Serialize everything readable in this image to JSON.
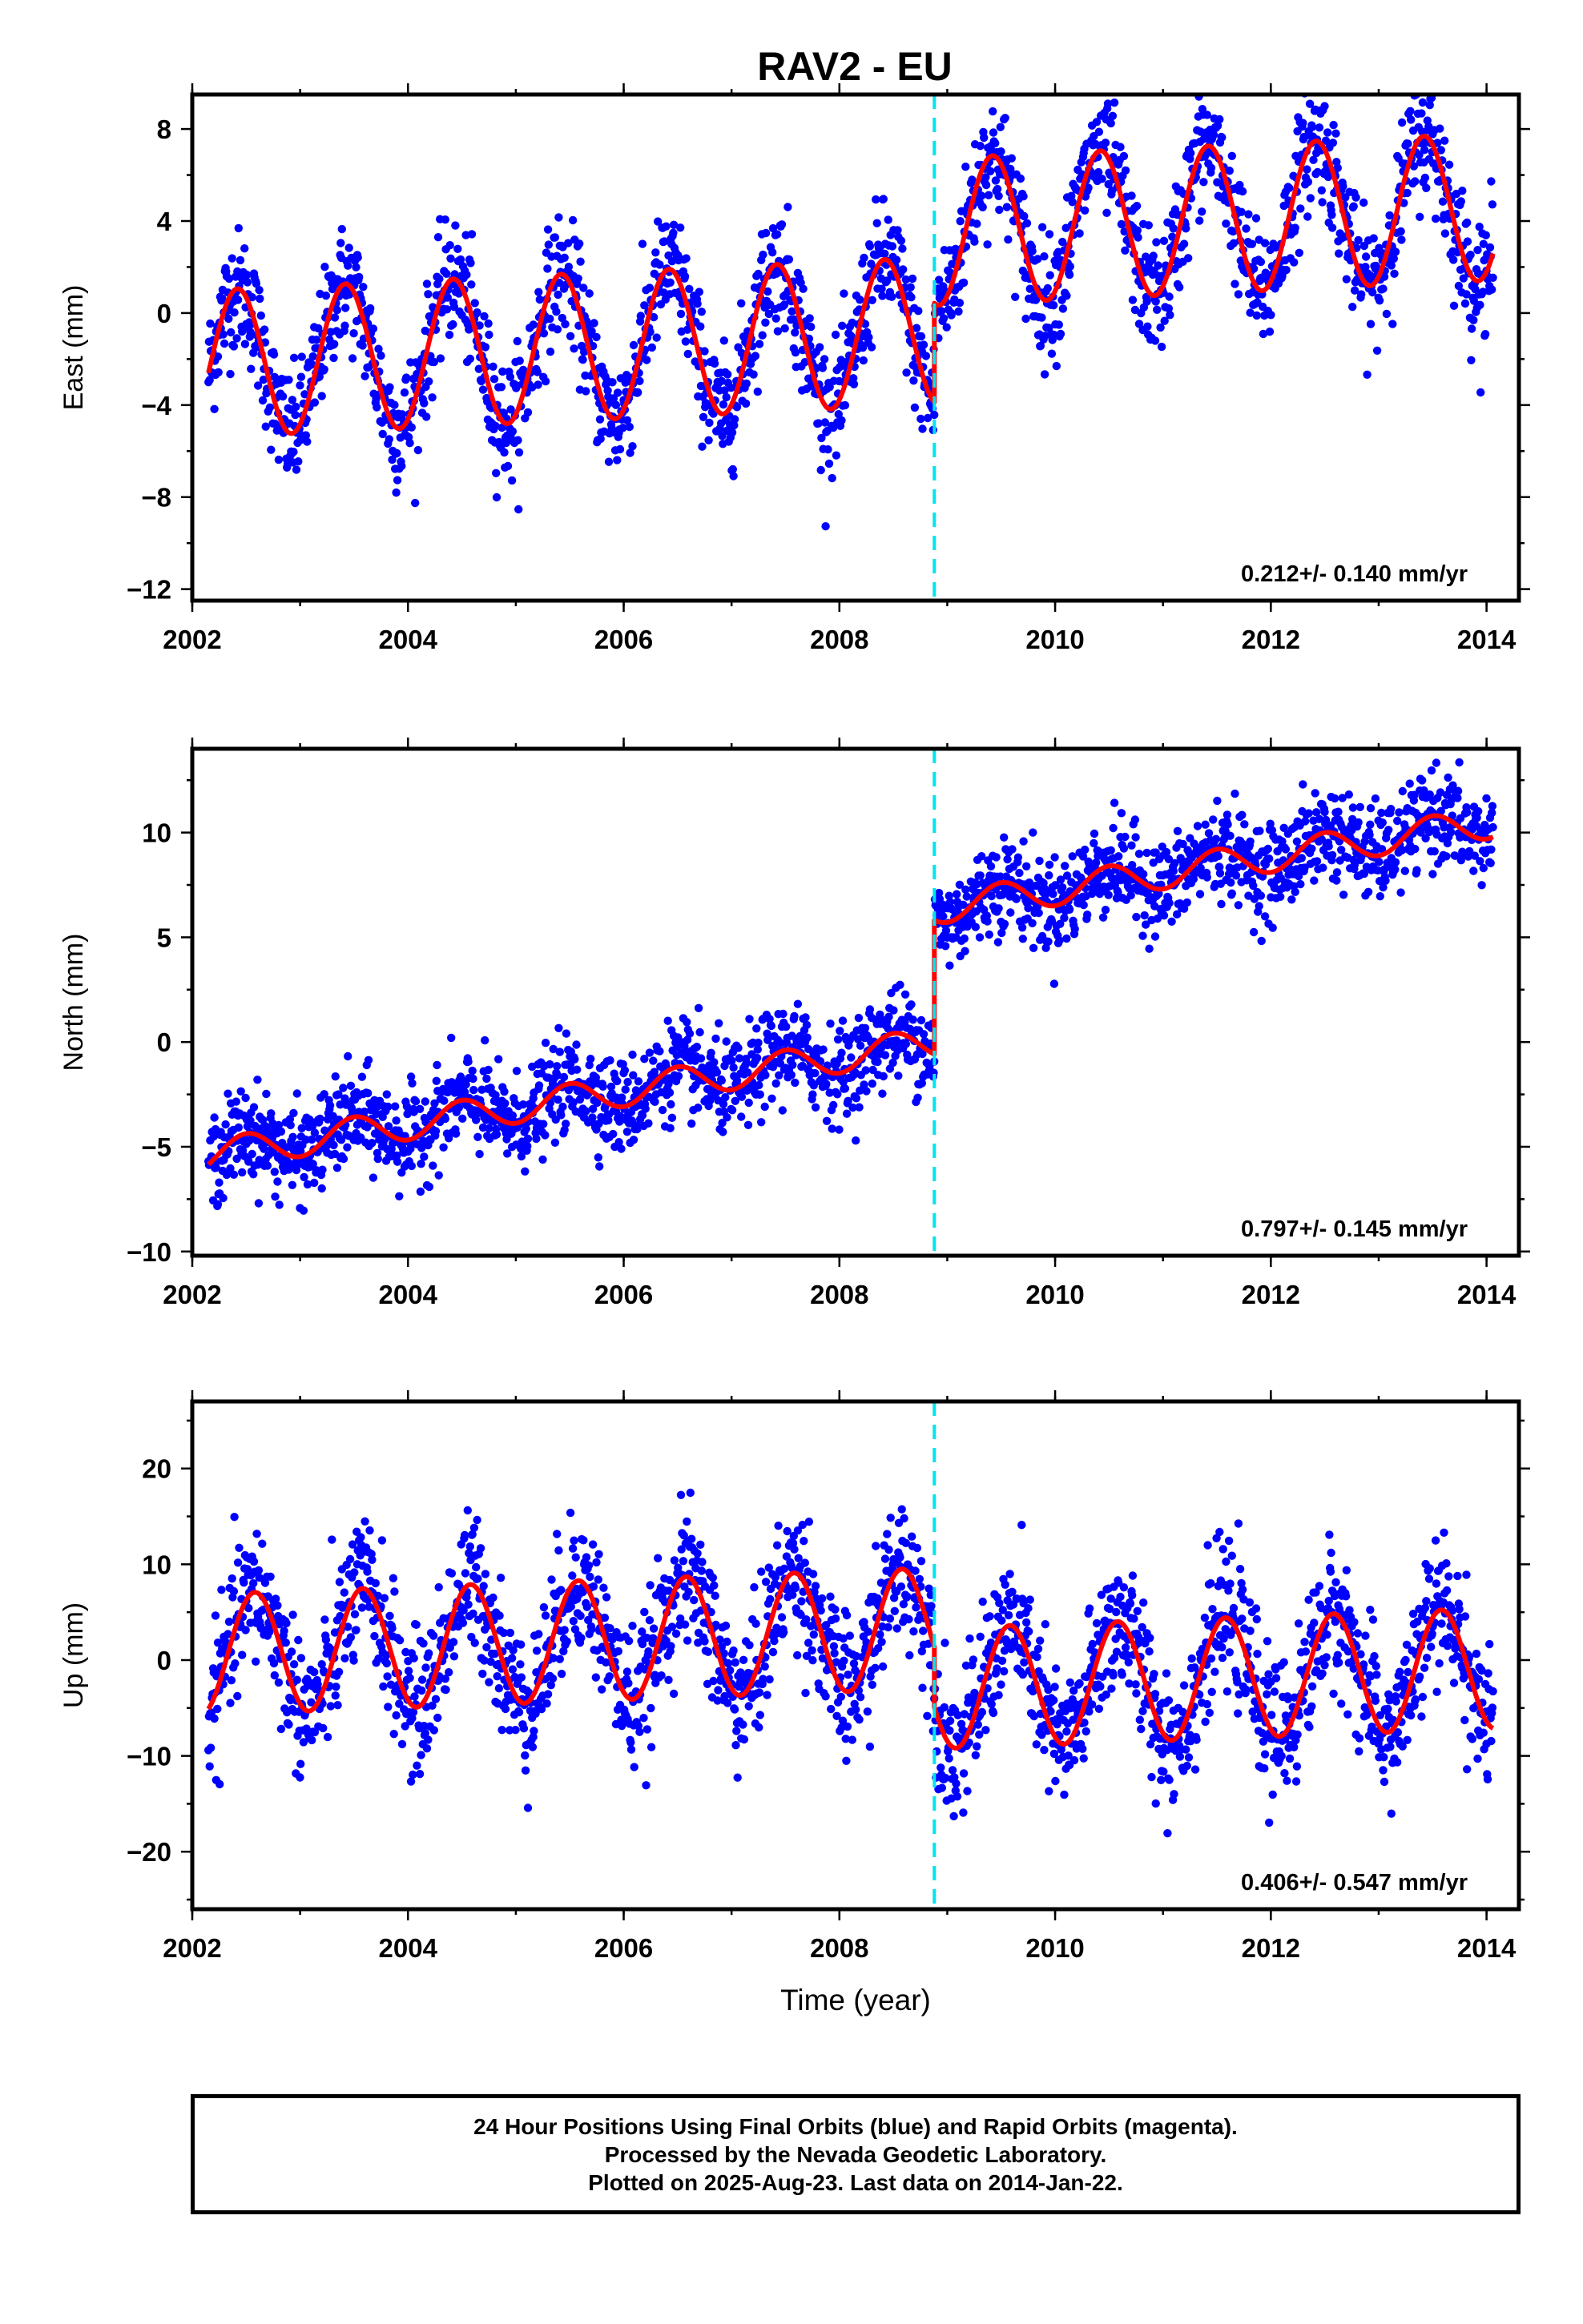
{
  "chart_data": [
    {
      "type": "scatter",
      "title": "RAV2 - EU",
      "ylabel": "East (mm)",
      "xlabel": "",
      "xlim": [
        2002.0,
        2014.3
      ],
      "ylim": [
        -12.5,
        9.5
      ],
      "xticks": [
        2002,
        2004,
        2006,
        2008,
        2010,
        2012,
        2014
      ],
      "yticks": [
        -12,
        -8,
        -4,
        0,
        4,
        8
      ],
      "ytick_labels": [
        "−12",
        "−8",
        "−4",
        "0",
        "4",
        "8"
      ],
      "annotation": "0.212+/- 0.140 mm/yr",
      "data_start": 2002.15,
      "data_end": 2014.06,
      "offset_epoch": 2008.88,
      "model": {
        "intercept": -2.2,
        "rate": 0.212,
        "annual_amplitude": 3.2,
        "annual_peak": 2002.42,
        "offset": 4.3
      },
      "scatter_noise": 1.3,
      "series": [
        {
          "name": "24 hour positions (final orbits)",
          "color": "#0000ff"
        },
        {
          "name": "model fit",
          "color": "#ff0000"
        },
        {
          "name": "equipment change",
          "color": "#00e5ee"
        }
      ]
    },
    {
      "type": "scatter",
      "title": "",
      "ylabel": "North (mm)",
      "xlabel": "",
      "xlim": [
        2002.0,
        2014.3
      ],
      "ylim": [
        -10.2,
        14.0
      ],
      "xticks": [
        2002,
        2004,
        2006,
        2008,
        2010,
        2012,
        2014
      ],
      "yticks": [
        -10,
        -5,
        0,
        5,
        10
      ],
      "ytick_labels": [
        "−10",
        "−5",
        "0",
        "5",
        "10"
      ],
      "annotation": "0.797+/- 0.145 mm/yr",
      "data_start": 2002.15,
      "data_end": 2014.06,
      "offset_epoch": 2008.88,
      "model": {
        "intercept": -5.4,
        "rate": 0.797,
        "annual_amplitude": 0.75,
        "annual_peak": 2002.5,
        "offset": 6.4
      },
      "scatter_noise": 1.1,
      "series": [
        {
          "name": "24 hour positions (final orbits)",
          "color": "#0000ff"
        },
        {
          "name": "model fit",
          "color": "#ff0000"
        },
        {
          "name": "equipment change",
          "color": "#00e5ee"
        }
      ]
    },
    {
      "type": "scatter",
      "title": "",
      "ylabel": "Up (mm)",
      "xlabel": "Time (year)",
      "xlim": [
        2002.0,
        2014.3
      ],
      "ylim": [
        -26.0,
        27.0
      ],
      "xticks": [
        2002,
        2004,
        2006,
        2008,
        2010,
        2012,
        2014
      ],
      "yticks": [
        -20,
        -10,
        0,
        10,
        20
      ],
      "ytick_labels": [
        "−20",
        "−10",
        "0",
        "10",
        "20"
      ],
      "annotation": "0.406+/- 0.547 mm/yr",
      "data_start": 2002.15,
      "data_end": 2014.06,
      "offset_epoch": 2008.88,
      "model": {
        "intercept": 0.6,
        "rate": 0.406,
        "annual_amplitude": 6.3,
        "annual_peak": 2002.58,
        "offset": -6.3
      },
      "scatter_noise": 3.6,
      "series": [
        {
          "name": "24 hour positions (final orbits)",
          "color": "#0000ff"
        },
        {
          "name": "model fit",
          "color": "#ff0000"
        },
        {
          "name": "equipment change",
          "color": "#00e5ee"
        }
      ]
    }
  ],
  "footer": {
    "line1": "24 Hour Positions Using Final Orbits (blue) and Rapid Orbits (magenta).",
    "line2": "Processed by the Nevada Geodetic Laboratory.",
    "line3": "Plotted on 2025-Aug-23. Last data on 2014-Jan-22."
  }
}
